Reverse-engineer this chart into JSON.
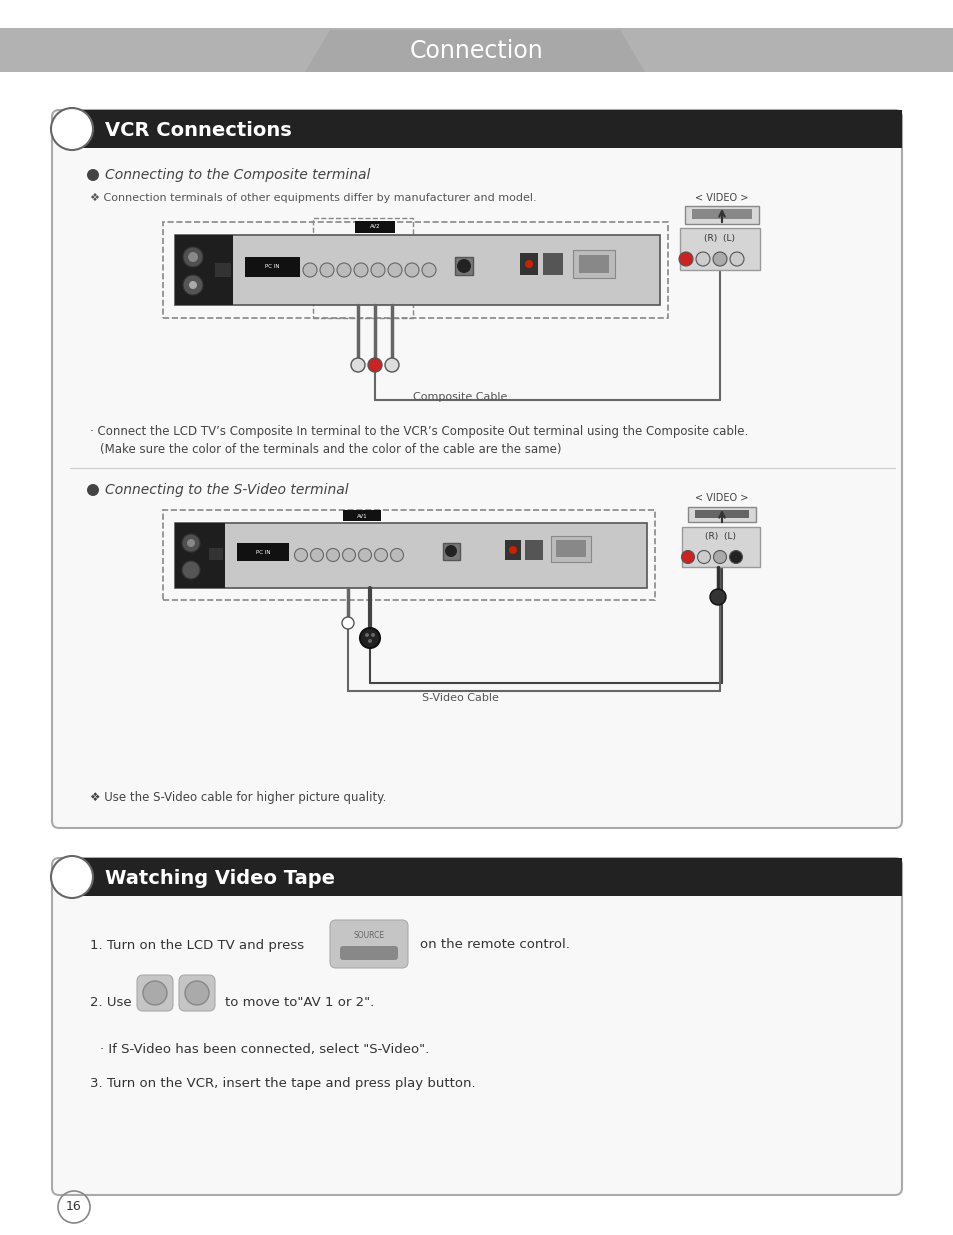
{
  "page_bg": "#ffffff",
  "header_bg": "#b2b2b2",
  "header_tab_bg": "#a5a5a5",
  "header_text": "Connection",
  "header_text_color": "#ffffff",
  "section1_title": "VCR Connections",
  "section2_title": "Watching Video Tape",
  "section_title_color": "#ffffff",
  "section_header_bg": "#222222",
  "composite_heading": "Connecting to the Composite terminal",
  "composite_note": "❖ Connection terminals of other equipments differ by manufacturer and model.",
  "composite_cable_label": "Composite Cable",
  "composite_desc1": "· Connect the LCD TV’s Composite In terminal to the VCR’s Composite Out terminal using the Composite cable.",
  "composite_desc2": "(Make sure the color of the terminals and the color of the cable are the same)",
  "svideo_heading": "Connecting to the S-Video terminal",
  "svideo_cable_label": "S-Video Cable",
  "svideo_note": "❖ Use the S-Video cable for higher picture quality.",
  "video_label": "< VIDEO >",
  "rl_label": "(R)  (L)",
  "step1": "1. Turn on the LCD TV and press",
  "step1b": "on the remote control.",
  "step2": "2. Use",
  "step2b": "to move to\"AV 1 or 2\".",
  "step3": "· If S-Video has been connected, select \"S-Video\".",
  "step4": "3. Turn on the VCR, insert the tape and press play button.",
  "page_num": "16",
  "border_color": "#aaaaaa",
  "tv_panel_bg": "#c8c8c8",
  "tv_panel_dark": "#1e1e1e"
}
